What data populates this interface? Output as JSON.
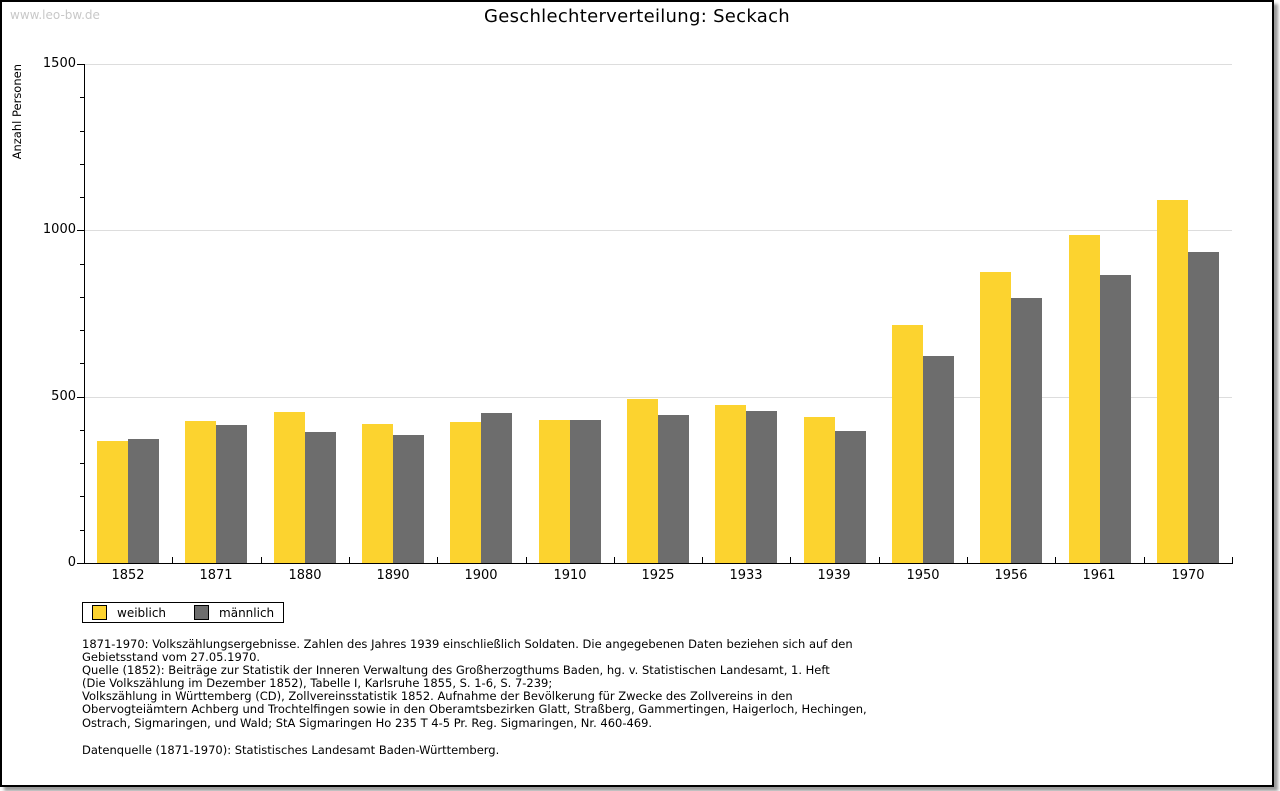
{
  "watermark": "www.leo-bw.de",
  "header": {
    "title": "Geschlechterverteilung: Seckach"
  },
  "chart_data": {
    "type": "bar",
    "title": "Geschlechterverteilung: Seckach",
    "xlabel": "",
    "ylabel": "Anzahl Personen",
    "categories": [
      "1852",
      "1871",
      "1880",
      "1890",
      "1900",
      "1910",
      "1925",
      "1933",
      "1939",
      "1950",
      "1956",
      "1961",
      "1970"
    ],
    "series": [
      {
        "name": "weiblich",
        "color": "#FCD32F",
        "values": [
          368,
          428,
          455,
          418,
          425,
          430,
          494,
          476,
          440,
          714,
          876,
          987,
          1091
        ]
      },
      {
        "name": "männlich",
        "color": "#6D6D6D",
        "values": [
          373,
          415,
          394,
          384,
          452,
          431,
          444,
          458,
          398,
          623,
          797,
          866,
          934
        ]
      }
    ],
    "ylim": [
      0,
      1500
    ],
    "yticks_major": [
      0,
      500,
      1000,
      1500
    ],
    "ytick_minor_step": 100,
    "grid": "horizontal",
    "legend_position": "bottom-left",
    "colors": {
      "grid": "#DDDDDD",
      "watermark": "#C8C8C8",
      "axis": "#000000"
    }
  },
  "legend": {
    "items": [
      {
        "label": "weiblich",
        "color": "#FCD32F"
      },
      {
        "label": "männlich",
        "color": "#6D6D6D"
      }
    ]
  },
  "footnotes": {
    "lines": [
      "1871-1970: Volkszählungsergebnisse. Zahlen des Jahres 1939 einschließlich Soldaten. Die angegebenen Daten beziehen sich auf den",
      "Gebietsstand vom 27.05.1970.",
      "Quelle (1852): Beiträge zur Statistik der Inneren Verwaltung des Großherzogthums Baden, hg. v. Statistischen Landesamt, 1. Heft",
      "(Die Volkszählung im Dezember 1852), Tabelle I, Karlsruhe 1855, S. 1-6, S. 7-239;",
      "Volkszählung in Württemberg (CD), Zollvereinsstatistik 1852. Aufnahme der Bevölkerung für Zwecke des Zollvereins in den",
      "Obervogteiämtern Achberg und Trochtelfingen sowie in den Oberamtsbezirken Glatt, Straßberg, Gammertingen, Haigerloch, Hechingen,",
      "Ostrach, Sigmaringen, und Wald; StA Sigmaringen Ho 235 T 4-5 Pr. Reg. Sigmaringen, Nr. 460-469."
    ],
    "source": "Datenquelle (1871-1970): Statistisches Landesamt Baden-Württemberg."
  }
}
